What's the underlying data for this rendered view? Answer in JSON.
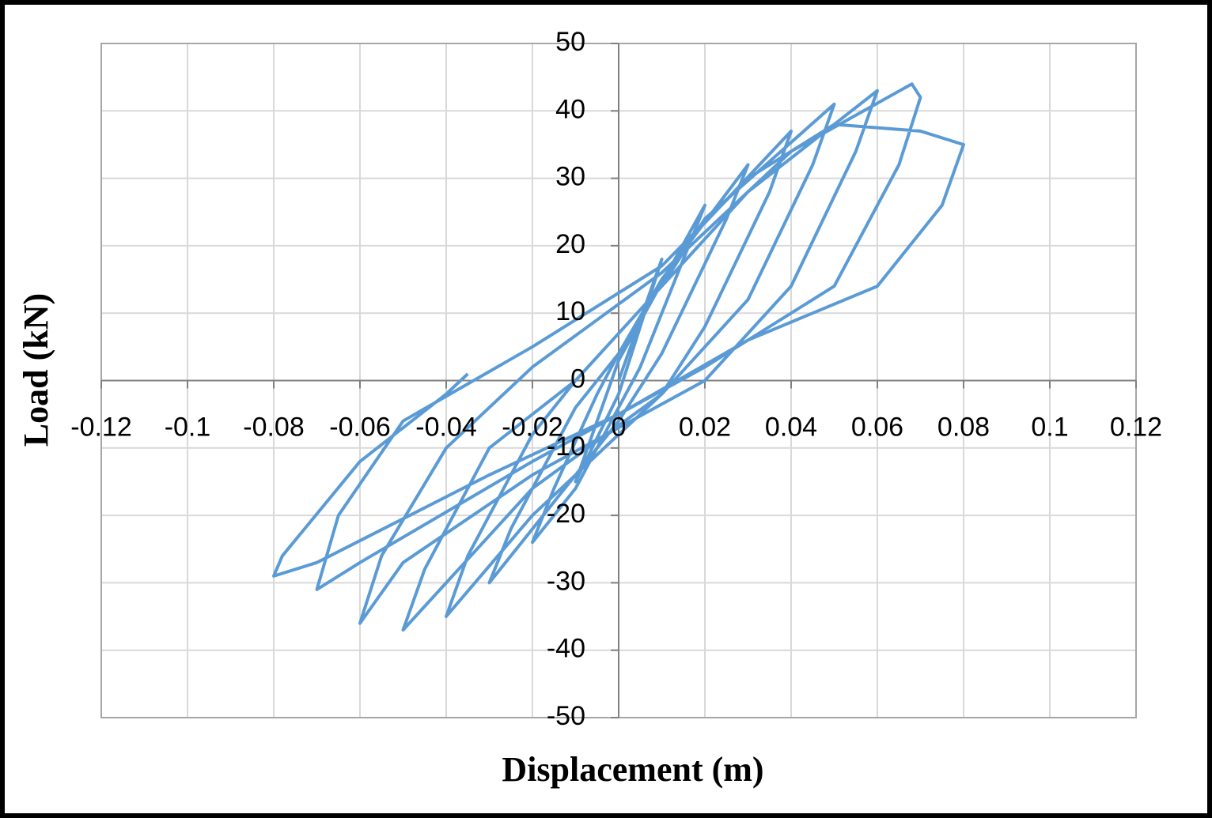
{
  "chart_data": {
    "type": "line",
    "x_label": "Displacement (m)",
    "y_label": "Load (kN)",
    "xlim": [
      -0.12,
      0.12
    ],
    "xticks": [
      -0.12,
      -0.1,
      -0.08,
      -0.06,
      -0.04,
      -0.02,
      0,
      0.02,
      0.04,
      0.06,
      0.08,
      0.1,
      0.12
    ],
    "ylim": [
      -50,
      50
    ],
    "yticks": [
      -50,
      -40,
      -30,
      -20,
      -10,
      0,
      10,
      20,
      30,
      40,
      50
    ],
    "grid": true,
    "x": [
      0,
      0.01,
      0.005,
      0,
      -0.01,
      -0.005,
      0,
      0.02,
      0.015,
      0.005,
      0,
      -0.01,
      -0.02,
      -0.015,
      -0.005,
      0,
      0.01,
      0.03,
      0.025,
      0.01,
      0,
      -0.02,
      -0.03,
      -0.025,
      -0.01,
      0,
      0.015,
      0.04,
      0.035,
      0.02,
      0.01,
      -0.02,
      -0.04,
      -0.035,
      -0.02,
      -0.01,
      0.01,
      0.02,
      0.05,
      0.045,
      0.03,
      0.01,
      -0.02,
      -0.05,
      -0.045,
      -0.03,
      -0.01,
      0.01,
      0.03,
      0.06,
      0.055,
      0.04,
      0.02,
      -0.02,
      -0.05,
      -0.06,
      -0.055,
      -0.04,
      -0.02,
      0.01,
      0.04,
      0.068,
      0.07,
      0.065,
      0.05,
      0.02,
      -0.02,
      -0.06,
      -0.07,
      -0.065,
      -0.05,
      -0.02,
      0.01,
      0.03,
      0.05,
      0.07,
      0.08,
      0.075,
      0.06,
      0.03,
      0,
      -0.03,
      -0.07,
      -0.08,
      -0.078,
      -0.06,
      -0.04,
      -0.035
    ],
    "series": [
      {
        "color": "#5b9bd5",
        "values": [
          0,
          18,
          8,
          -2,
          -15,
          -6,
          3,
          26,
          18,
          2,
          -4,
          -16,
          -24,
          -16,
          -2,
          4,
          15,
          32,
          24,
          4,
          -6,
          -22,
          -30,
          -22,
          -4,
          4,
          20,
          37,
          28,
          8,
          -2,
          -20,
          -35,
          -26,
          -8,
          0,
          14,
          24,
          41,
          32,
          12,
          -2,
          -16,
          -37,
          -28,
          -10,
          0,
          14,
          28,
          43,
          34,
          14,
          0,
          -14,
          -27,
          -36,
          -26,
          -10,
          2,
          16,
          34,
          44,
          42,
          32,
          14,
          2,
          -12,
          -27,
          -31,
          -20,
          -6,
          5,
          17,
          30,
          38,
          37,
          35,
          26,
          14,
          6,
          -5,
          -14,
          -27,
          -29,
          -26,
          -12,
          -2,
          1
        ]
      }
    ]
  }
}
